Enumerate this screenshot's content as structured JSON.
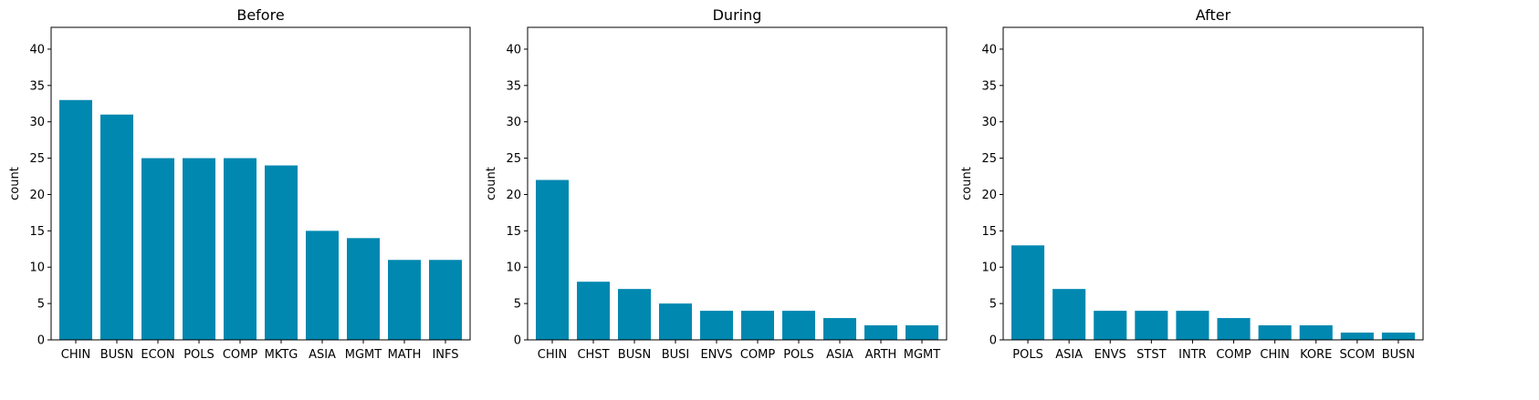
{
  "figure": {
    "ylabel": "count",
    "bar_color": "#0088b0",
    "ylim": [
      0,
      43
    ],
    "yticks": [
      0,
      5,
      10,
      15,
      20,
      25,
      30,
      35,
      40
    ]
  },
  "chart_data": [
    {
      "type": "bar",
      "title": "Before",
      "xlabel": "",
      "ylabel": "count",
      "ylim": [
        0,
        43
      ],
      "grid": false,
      "categories": [
        "CHIN",
        "BUSN",
        "ECON",
        "POLS",
        "COMP",
        "MKTG",
        "ASIA",
        "MGMT",
        "MATH",
        "INFS"
      ],
      "values": [
        33,
        31,
        25,
        25,
        25,
        24,
        15,
        14,
        11,
        11
      ]
    },
    {
      "type": "bar",
      "title": "During",
      "xlabel": "",
      "ylabel": "count",
      "ylim": [
        0,
        43
      ],
      "grid": false,
      "categories": [
        "CHIN",
        "CHST",
        "BUSN",
        "BUSI",
        "ENVS",
        "COMP",
        "POLS",
        "ASIA",
        "ARTH",
        "MGMT"
      ],
      "values": [
        22,
        8,
        7,
        5,
        4,
        4,
        4,
        3,
        2,
        2
      ]
    },
    {
      "type": "bar",
      "title": "After",
      "xlabel": "",
      "ylabel": "count",
      "ylim": [
        0,
        43
      ],
      "grid": false,
      "categories": [
        "POLS",
        "ASIA",
        "ENVS",
        "STST",
        "INTR",
        "COMP",
        "CHIN",
        "KORE",
        "SCOM",
        "BUSN"
      ],
      "values": [
        13,
        7,
        4,
        4,
        4,
        3,
        2,
        2,
        1,
        1
      ]
    }
  ]
}
